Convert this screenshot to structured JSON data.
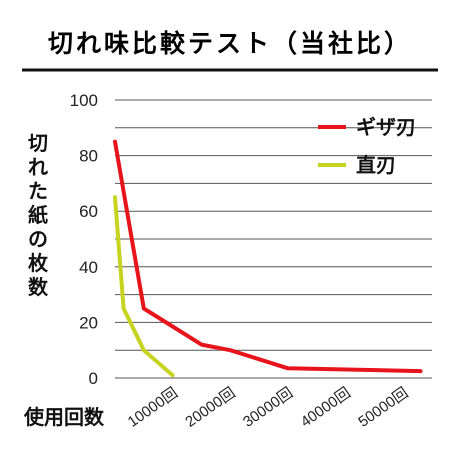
{
  "chart_data": {
    "type": "line",
    "title": "切れ味比較テスト（当社比）",
    "xlabel": "使用回数",
    "ylabel": "切れた紙の枚数",
    "xlim": [
      0,
      55000
    ],
    "ylim": [
      0,
      100
    ],
    "y_ticks": [
      "0",
      "20",
      "40",
      "60",
      "80",
      "100"
    ],
    "x_ticks": [
      {
        "value": 10000,
        "label": "10000回"
      },
      {
        "value": 20000,
        "label": "20000回"
      },
      {
        "value": 30000,
        "label": "30000回"
      },
      {
        "value": 40000,
        "label": "40000回"
      },
      {
        "value": 50000,
        "label": "50000回"
      }
    ],
    "grid": true,
    "legend_position": "top-right",
    "series": [
      {
        "name": "ギザ刃",
        "color": "#e8141c",
        "x": [
          0,
          5000,
          15000,
          20000,
          30000,
          53000
        ],
        "y": [
          85,
          25,
          12,
          10,
          3.5,
          2.5
        ]
      },
      {
        "name": "直刃",
        "color": "#c6d41f",
        "x": [
          0,
          1500,
          5000,
          10000
        ],
        "y": [
          65,
          25,
          10,
          1
        ]
      }
    ]
  }
}
